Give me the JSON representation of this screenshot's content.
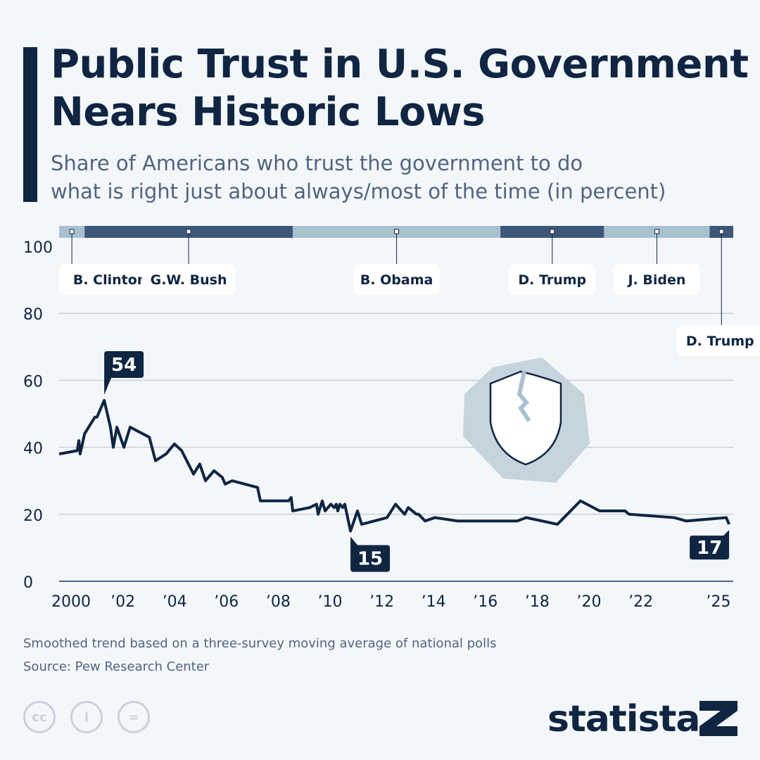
{
  "title": "Public Trust in U.S. Government Nears Historic Lows",
  "title_lines": [
    "Public Trust in U.S. Government",
    "Nears Historic Lows"
  ],
  "subtitle_lines": [
    "Share of Americans who trust the government to do",
    "what is right just about always/most of the time (in percent)"
  ],
  "notes": [
    "Smoothed trend based on a three-survey moving average of national polls",
    "Source: Pew Research Center"
  ],
  "brand": "statista",
  "license_icons": [
    "cc-icon",
    "attribution-icon",
    "no-derivatives-icon"
  ],
  "colors": {
    "line": "#0f2542",
    "term_light": "#a9c1cf",
    "term_dark": "#3e5778",
    "grid": "#c9d0da"
  },
  "chart_data": {
    "type": "line",
    "ylim": [
      0,
      100
    ],
    "yticks": [
      0,
      20,
      40,
      60,
      80,
      100
    ],
    "xticks": [
      {
        "year": 2000,
        "label": "2000"
      },
      {
        "year": 2002,
        "label": "’02"
      },
      {
        "year": 2004,
        "label": "’04"
      },
      {
        "year": 2006,
        "label": "’06"
      },
      {
        "year": 2008,
        "label": "’08"
      },
      {
        "year": 2010,
        "label": "’10"
      },
      {
        "year": 2012,
        "label": "’12"
      },
      {
        "year": 2014,
        "label": "’14"
      },
      {
        "year": 2016,
        "label": "’16"
      },
      {
        "year": 2018,
        "label": "’18"
      },
      {
        "year": 2020,
        "label": "’20"
      },
      {
        "year": 2022,
        "label": "’22"
      },
      {
        "year": 2025,
        "label": "’25"
      }
    ],
    "x": [
      1999.54,
      2000.24,
      2000.3,
      2000.35,
      2000.52,
      2000.92,
      2001.0,
      2001.28,
      2001.52,
      2001.63,
      2001.77,
      2002.04,
      2002.28,
      2003.02,
      2003.26,
      2003.67,
      2003.99,
      2004.27,
      2004.73,
      2004.97,
      2005.19,
      2005.52,
      2005.84,
      2005.95,
      2006.22,
      2007.2,
      2007.31,
      2008.4,
      2008.5,
      2008.56,
      2009.21,
      2009.48,
      2009.54,
      2009.7,
      2009.81,
      2010.03,
      2010.16,
      2010.24,
      2010.3,
      2010.38,
      2010.49,
      2010.57,
      2010.79,
      2011.06,
      2011.22,
      2012.2,
      2012.53,
      2012.88,
      2013.02,
      2013.34,
      2013.42,
      2013.67,
      2014.05,
      2014.92,
      2016.0,
      2017.23,
      2017.58,
      2018.78,
      2019.67,
      2020.41,
      2021.39,
      2021.55,
      2023.29,
      2023.75,
      2025.3,
      2025.41
    ],
    "y": [
      38,
      39,
      42,
      38,
      44,
      49,
      49,
      54,
      46,
      40,
      46,
      40,
      46,
      43,
      36,
      38,
      41,
      39,
      32,
      35,
      30,
      33,
      31,
      29,
      30,
      28,
      24,
      24,
      25,
      21,
      22,
      23,
      20,
      24,
      21,
      23,
      22,
      23,
      21,
      23,
      22,
      23,
      15,
      21,
      17,
      19,
      23,
      20,
      22,
      20,
      20,
      18,
      19,
      18,
      18,
      18,
      19,
      17,
      24,
      21,
      21,
      20,
      19,
      18,
      19,
      17
    ],
    "callouts": [
      {
        "year": 2001.28,
        "value": 54,
        "label": "54"
      },
      {
        "year": 2010.79,
        "value": 15,
        "label": "15"
      },
      {
        "year": 2025.41,
        "value": 17,
        "label": "17"
      }
    ],
    "presidents": [
      {
        "name": "B. Clinton",
        "start": 1999.54,
        "end": 2000.52,
        "shade": "light"
      },
      {
        "name": "G.W. Bush",
        "start": 2000.52,
        "end": 2008.56,
        "shade": "dark"
      },
      {
        "name": "B. Obama",
        "start": 2008.56,
        "end": 2016.58,
        "shade": "light"
      },
      {
        "name": "D. Trump",
        "start": 2016.58,
        "end": 2020.58,
        "shade": "dark"
      },
      {
        "name": "J. Biden",
        "start": 2020.58,
        "end": 2024.66,
        "shade": "light"
      },
      {
        "name": "D. Trump",
        "start": 2024.66,
        "end": 2025.6,
        "shade": "dark"
      }
    ],
    "grid": true
  }
}
